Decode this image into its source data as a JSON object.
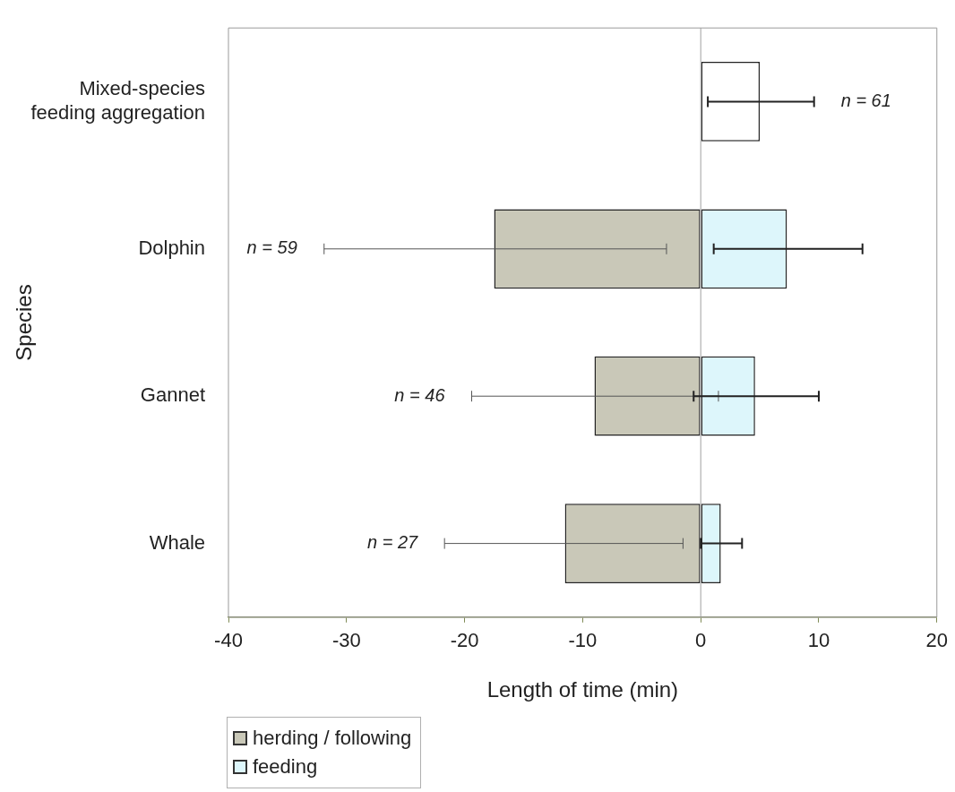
{
  "chart_data": {
    "type": "bar",
    "orientation": "horizontal",
    "xlabel": "Length of time (min)",
    "ylabel": "Species",
    "categories": [
      "Mixed-species feeding aggregation",
      "Dolphin",
      "Gannet",
      "Whale"
    ],
    "series": [
      {
        "name": "herding / following",
        "color": "#c9c8b8",
        "values": [
          null,
          -17.5,
          -9.0,
          -11.5
        ],
        "errors": [
          null,
          [
            -31.9,
            -2.9
          ],
          [
            -19.4,
            1.5
          ],
          [
            -21.7,
            -1.5
          ]
        ]
      },
      {
        "name": "feeding",
        "color": "#ddf6fb",
        "colors": [
          "#ffffff",
          "#ddf6fb",
          "#ddf6fb",
          "#ddf6fb"
        ],
        "values": [
          5.0,
          7.3,
          4.6,
          1.7
        ],
        "errors": [
          [
            0.6,
            9.6
          ],
          [
            1.1,
            13.7
          ],
          [
            -0.6,
            10.0
          ],
          [
            0,
            3.5
          ]
        ]
      }
    ],
    "xlim": [
      -40,
      20
    ],
    "xticks": [
      -40,
      -30,
      -20,
      -10,
      0,
      10,
      20
    ],
    "ref_lines": [
      {
        "axis": "x",
        "value": 0,
        "color": "#a0a0a0"
      }
    ],
    "annotations": [
      "n = 61",
      "n = 59",
      "n = 46",
      "n = 27"
    ],
    "stacked": true,
    "legend": "bottom left"
  }
}
